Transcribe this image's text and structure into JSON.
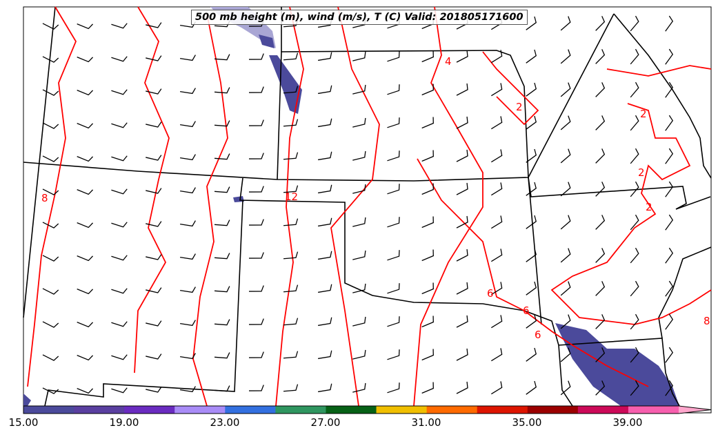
{
  "title": "500 mb height (m), wind (m/s), T (C) Valid: 201805171600",
  "contour_labels": [
    "4",
    "2",
    "2",
    "2",
    "2",
    "8",
    "12",
    "6",
    "6",
    "6",
    "8"
  ],
  "colorbar": {
    "ticks": [
      "15.00",
      "19.00",
      "23.00",
      "27.00",
      "31.00",
      "35.00",
      "39.00"
    ],
    "min": 15,
    "max": 41,
    "step": 2,
    "colors": [
      "#4b4a9b",
      "#5a3fa0",
      "#6a2bc0",
      "#a98cf7",
      "#3370e0",
      "#2f9660",
      "#066116",
      "#f0bf00",
      "#ff6a00",
      "#dd1500",
      "#9b0000",
      "#cc0958",
      "#f75fae"
    ],
    "extend_color": "#ffa6cc"
  },
  "colors": {
    "contour": "#ff0000",
    "borders": "#000000",
    "jet": "#4b4a9b"
  }
}
